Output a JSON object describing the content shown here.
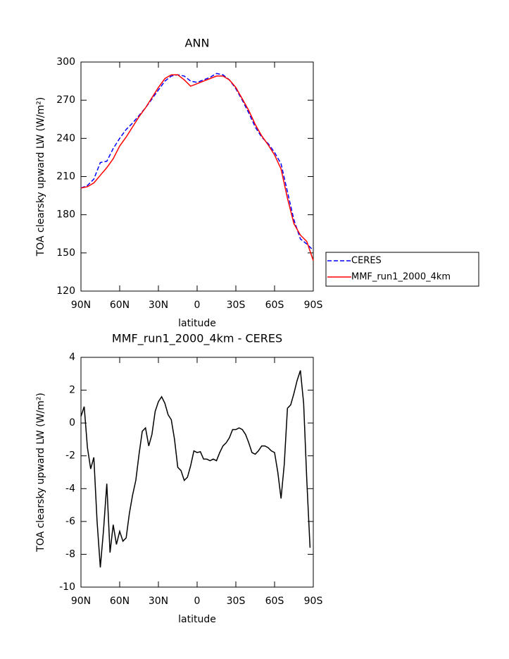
{
  "chart_data": [
    {
      "type": "line",
      "title": "ANN",
      "x_label": "latitude",
      "y_label": "TOA clearsky upward LW (W/m²)",
      "x": [
        90,
        85,
        80,
        75,
        70,
        65,
        60,
        55,
        50,
        45,
        40,
        35,
        30,
        25,
        20,
        15,
        10,
        5,
        0,
        -5,
        -10,
        -15,
        -20,
        -25,
        -30,
        -35,
        -40,
        -45,
        -50,
        -55,
        -60,
        -65,
        -70,
        -75,
        -80,
        -85,
        -90
      ],
      "series": [
        {
          "name": "CERES",
          "color": "#0000ff",
          "dash": true,
          "values": [
            201,
            203,
            208,
            221,
            222,
            232,
            240,
            247,
            252,
            258,
            264,
            271,
            278,
            285,
            289,
            290,
            289,
            285,
            284,
            286,
            288,
            291,
            290,
            286,
            279,
            270,
            260,
            249,
            241,
            236,
            229,
            220,
            198,
            176,
            161,
            157,
            152
          ]
        },
        {
          "name": "MMF_run1_2000_4km",
          "color": "#ff0000",
          "dash": false,
          "values": [
            201,
            202,
            205,
            211,
            217,
            224,
            234,
            241,
            249,
            257,
            264,
            272,
            280,
            287,
            290,
            290,
            286,
            281,
            283,
            285,
            287,
            289,
            289,
            286,
            280,
            271,
            262,
            251,
            242,
            235,
            227,
            216,
            193,
            173,
            164,
            159,
            144
          ]
        }
      ],
      "xlim": [
        90,
        -90
      ],
      "xticks": [
        {
          "value": 90,
          "label": "90N"
        },
        {
          "value": 60,
          "label": "60N"
        },
        {
          "value": 30,
          "label": "30N"
        },
        0,
        {
          "value": -30,
          "label": "30S"
        },
        {
          "value": -60,
          "label": "60S"
        },
        {
          "value": -90,
          "label": "90S"
        }
      ],
      "ylim": [
        120,
        300
      ],
      "yticks": [
        120,
        150,
        180,
        210,
        240,
        270,
        300
      ],
      "legend": "right"
    },
    {
      "type": "line",
      "title": "MMF_run1_2000_4km - CERES",
      "x_label": "latitude",
      "y_label": "TOA clearsky upward LW (W/m²)",
      "x": [
        90,
        87.5,
        85,
        82.5,
        80,
        77.5,
        75,
        72.5,
        70,
        67.5,
        65,
        62.5,
        60,
        57.5,
        55,
        52.5,
        50,
        47.5,
        45,
        42.5,
        40,
        37.5,
        35,
        32.5,
        30,
        27.5,
        25,
        22.5,
        20,
        17.5,
        15,
        12.5,
        10,
        7.5,
        5,
        2.5,
        0,
        -2.5,
        -5,
        -7.5,
        -10,
        -12.5,
        -15,
        -17.5,
        -20,
        -22.5,
        -25,
        -27.5,
        -30,
        -32.5,
        -35,
        -37.5,
        -40,
        -42.5,
        -45,
        -47.5,
        -50,
        -52.5,
        -55,
        -57.5,
        -60,
        -62.5,
        -65,
        -67.5,
        -70,
        -72.5,
        -75,
        -77.5,
        -80,
        -82.5,
        -85,
        -87.5
      ],
      "series": [
        {
          "color": "#000000",
          "dash": false,
          "values": [
            0.4,
            1.0,
            -1.5,
            -2.8,
            -2.1,
            -6,
            -8.8,
            -6.5,
            -3.7,
            -7.9,
            -6.2,
            -7.4,
            -6.6,
            -7.2,
            -7.0,
            -5.5,
            -4.4,
            -3.5,
            -1.9,
            -0.5,
            -0.3,
            -1.4,
            -0.7,
            0.7,
            1.3,
            1.6,
            1.2,
            0.5,
            0.2,
            -1.0,
            -2.7,
            -2.9,
            -3.5,
            -3.3,
            -2.6,
            -1.7,
            -1.8,
            -1.75,
            -2.2,
            -2.2,
            -2.3,
            -2.2,
            -2.3,
            -1.8,
            -1.4,
            -1.2,
            -0.9,
            -0.4,
            -0.4,
            -0.3,
            -0.4,
            -0.7,
            -1.2,
            -1.8,
            -1.9,
            -1.7,
            -1.4,
            -1.4,
            -1.5,
            -1.7,
            -1.8,
            -3.0,
            -4.6,
            -2.5,
            0.9,
            1.1,
            1.8,
            2.6,
            3.2,
            1.2,
            -3.5,
            -7.6
          ]
        }
      ],
      "xlim": [
        90,
        -90
      ],
      "xticks": [
        {
          "value": 90,
          "label": "90N"
        },
        {
          "value": 60,
          "label": "60N"
        },
        {
          "value": 30,
          "label": "30N"
        },
        0,
        {
          "value": -30,
          "label": "30S"
        },
        {
          "value": -60,
          "label": "60S"
        },
        {
          "value": -90,
          "label": "90S"
        }
      ],
      "ylim": [
        -10,
        4
      ],
      "yticks": [
        -10,
        -8,
        -6,
        -4,
        -2,
        0,
        2,
        4
      ]
    }
  ]
}
